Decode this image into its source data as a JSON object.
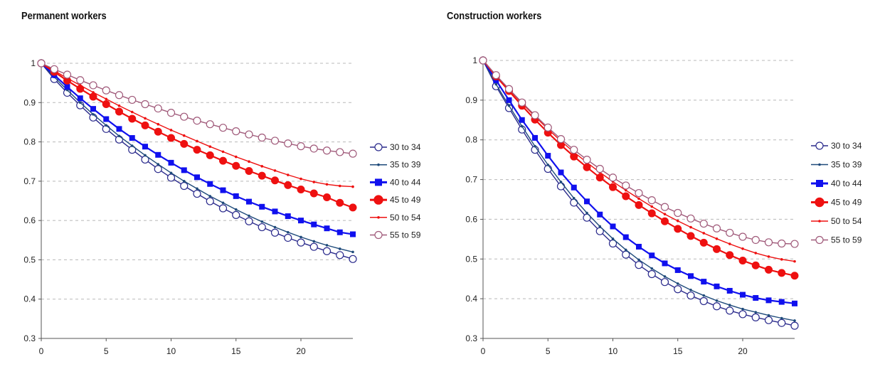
{
  "chart_data": [
    {
      "type": "line",
      "title": "Permanent workers",
      "xlabel": "",
      "ylabel": "",
      "xlim": [
        0,
        24
      ],
      "ylim": [
        0.3,
        1.0
      ],
      "xticks": [
        0,
        5,
        10,
        15,
        20
      ],
      "yticks": [
        "0.3",
        "0.4",
        "0.5",
        "0.6",
        "0.7",
        "0.8",
        "0.9",
        "1"
      ],
      "grid": "horizontal-dashed",
      "legend_position": "right",
      "x": [
        0,
        1,
        2,
        3,
        4,
        5,
        6,
        7,
        8,
        9,
        10,
        11,
        12,
        13,
        14,
        15,
        16,
        17,
        18,
        19,
        20,
        21,
        22,
        23,
        24
      ],
      "series": [
        {
          "name": "30 to 34",
          "color": "#2a2a8c",
          "marker": "open-circle",
          "values": [
            1.0,
            0.96,
            0.925,
            0.893,
            0.862,
            0.833,
            0.806,
            0.78,
            0.755,
            0.731,
            0.709,
            0.688,
            0.668,
            0.649,
            0.631,
            0.614,
            0.598,
            0.583,
            0.569,
            0.556,
            0.544,
            0.533,
            0.522,
            0.512,
            0.502
          ]
        },
        {
          "name": "35 to 39",
          "color": "#1e4a7a",
          "marker": "small-dot",
          "values": [
            1.0,
            0.965,
            0.932,
            0.9,
            0.87,
            0.842,
            0.815,
            0.79,
            0.766,
            0.743,
            0.721,
            0.7,
            0.681,
            0.662,
            0.645,
            0.628,
            0.612,
            0.597,
            0.583,
            0.57,
            0.558,
            0.547,
            0.537,
            0.528,
            0.52
          ]
        },
        {
          "name": "40 to 44",
          "color": "#1010ee",
          "marker": "filled-square",
          "values": [
            1.0,
            0.97,
            0.94,
            0.911,
            0.884,
            0.858,
            0.833,
            0.81,
            0.788,
            0.767,
            0.747,
            0.728,
            0.71,
            0.693,
            0.677,
            0.662,
            0.648,
            0.635,
            0.623,
            0.611,
            0.6,
            0.59,
            0.58,
            0.57,
            0.565
          ]
        },
        {
          "name": "45 to 49",
          "color": "#ee1010",
          "marker": "filled-circle",
          "values": [
            1.0,
            0.978,
            0.956,
            0.935,
            0.915,
            0.896,
            0.877,
            0.859,
            0.842,
            0.826,
            0.81,
            0.795,
            0.78,
            0.766,
            0.752,
            0.739,
            0.726,
            0.714,
            0.702,
            0.69,
            0.679,
            0.669,
            0.659,
            0.645,
            0.633
          ]
        },
        {
          "name": "50 to 54",
          "color": "#ee1010",
          "marker": "small-dot",
          "values": [
            1.0,
            0.981,
            0.962,
            0.944,
            0.926,
            0.909,
            0.892,
            0.876,
            0.86,
            0.845,
            0.83,
            0.816,
            0.802,
            0.788,
            0.775,
            0.762,
            0.75,
            0.738,
            0.727,
            0.716,
            0.706,
            0.698,
            0.692,
            0.688,
            0.686
          ]
        },
        {
          "name": "55 to 59",
          "color": "#a05a7a",
          "marker": "open-circle",
          "values": [
            1.0,
            0.985,
            0.971,
            0.957,
            0.944,
            0.931,
            0.919,
            0.907,
            0.896,
            0.885,
            0.874,
            0.864,
            0.854,
            0.845,
            0.836,
            0.827,
            0.819,
            0.811,
            0.803,
            0.796,
            0.789,
            0.783,
            0.778,
            0.774,
            0.77
          ]
        }
      ]
    },
    {
      "type": "line",
      "title": "Construction workers",
      "xlabel": "",
      "ylabel": "",
      "xlim": [
        0,
        24
      ],
      "ylim": [
        0.3,
        1.0
      ],
      "xticks": [
        0,
        5,
        10,
        15,
        20
      ],
      "yticks": [
        "0.3",
        "0.4",
        "0.5",
        "0.6",
        "0.7",
        "0.8",
        "0.9",
        "1"
      ],
      "grid": "horizontal-dashed",
      "legend_position": "right",
      "x": [
        0,
        1,
        2,
        3,
        4,
        5,
        6,
        7,
        8,
        9,
        10,
        11,
        12,
        13,
        14,
        15,
        16,
        17,
        18,
        19,
        20,
        21,
        22,
        23,
        24
      ],
      "series": [
        {
          "name": "30 to 34",
          "color": "#2a2a8c",
          "marker": "open-circle",
          "values": [
            1.0,
            0.935,
            0.88,
            0.826,
            0.775,
            0.727,
            0.683,
            0.642,
            0.604,
            0.57,
            0.539,
            0.511,
            0.485,
            0.462,
            0.442,
            0.424,
            0.408,
            0.394,
            0.381,
            0.37,
            0.361,
            0.353,
            0.346,
            0.339,
            0.332
          ]
        },
        {
          "name": "35 to 39",
          "color": "#1e4a7a",
          "marker": "small-dot",
          "values": [
            1.0,
            0.94,
            0.886,
            0.834,
            0.784,
            0.737,
            0.694,
            0.653,
            0.616,
            0.582,
            0.551,
            0.523,
            0.498,
            0.476,
            0.456,
            0.438,
            0.422,
            0.408,
            0.395,
            0.384,
            0.374,
            0.366,
            0.358,
            0.351,
            0.345
          ]
        },
        {
          "name": "40 to 44",
          "color": "#1010ee",
          "marker": "filled-square",
          "values": [
            1.0,
            0.95,
            0.9,
            0.85,
            0.805,
            0.76,
            0.718,
            0.68,
            0.645,
            0.612,
            0.582,
            0.555,
            0.531,
            0.509,
            0.489,
            0.472,
            0.457,
            0.443,
            0.431,
            0.42,
            0.41,
            0.402,
            0.396,
            0.392,
            0.388
          ]
        },
        {
          "name": "45 to 49",
          "color": "#ee1010",
          "marker": "filled-circle",
          "values": [
            1.0,
            0.96,
            0.923,
            0.886,
            0.851,
            0.818,
            0.787,
            0.758,
            0.731,
            0.705,
            0.681,
            0.658,
            0.636,
            0.615,
            0.595,
            0.576,
            0.558,
            0.541,
            0.525,
            0.51,
            0.496,
            0.484,
            0.473,
            0.465,
            0.458
          ]
        },
        {
          "name": "50 to 54",
          "color": "#ee1010",
          "marker": "small-dot",
          "values": [
            1.0,
            0.962,
            0.927,
            0.892,
            0.859,
            0.827,
            0.797,
            0.769,
            0.743,
            0.718,
            0.695,
            0.673,
            0.652,
            0.632,
            0.613,
            0.596,
            0.58,
            0.565,
            0.551,
            0.538,
            0.526,
            0.515,
            0.506,
            0.499,
            0.494
          ]
        },
        {
          "name": "55 to 59",
          "color": "#a05a7a",
          "marker": "open-circle",
          "values": [
            1.0,
            0.963,
            0.928,
            0.894,
            0.862,
            0.831,
            0.802,
            0.775,
            0.75,
            0.727,
            0.705,
            0.685,
            0.666,
            0.648,
            0.631,
            0.616,
            0.602,
            0.589,
            0.577,
            0.566,
            0.556,
            0.548,
            0.542,
            0.539,
            0.538
          ]
        }
      ]
    }
  ]
}
